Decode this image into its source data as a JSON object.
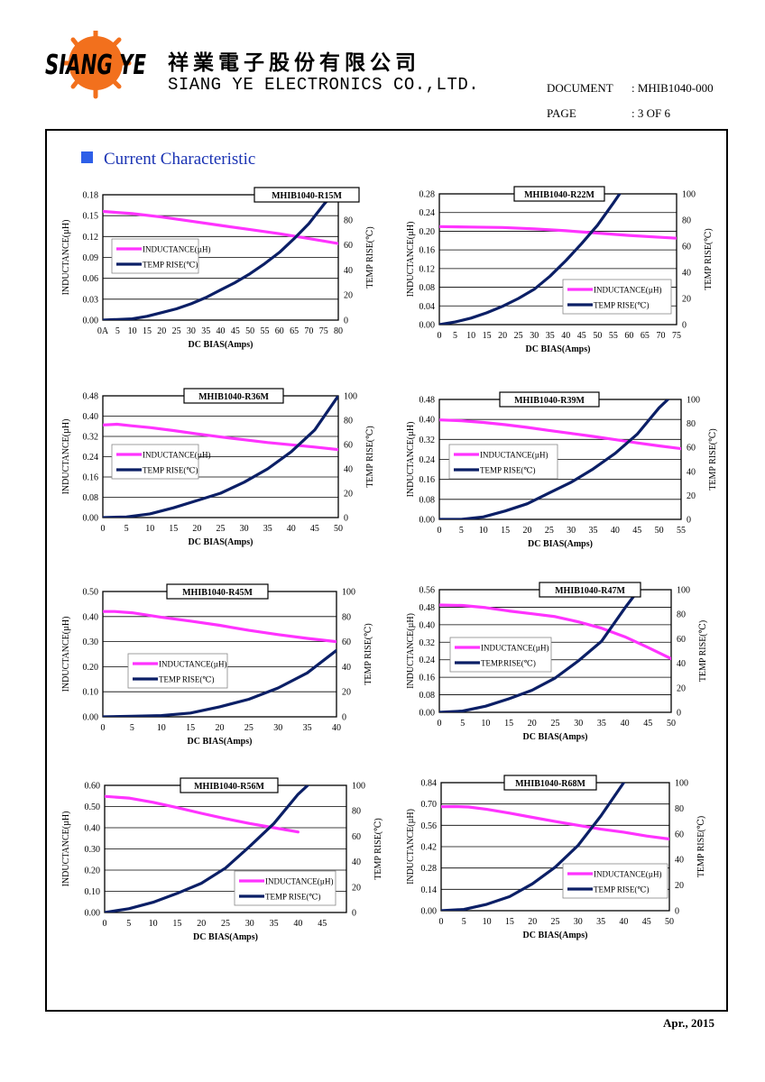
{
  "header": {
    "logo_text": "SIANG YE",
    "company_cn": "祥業電子股份有限公司",
    "company_en": "SIANG YE ELECTRONICS CO.,LTD.",
    "doc_label": "DOCUMENT",
    "doc_value": ": MHIB1040-000",
    "page_label": "PAGE",
    "page_value": ": 3 OF 6"
  },
  "section": {
    "title": "Current Characteristic"
  },
  "footer": {
    "date": "Apr., 2015"
  },
  "colors": {
    "inductance": "#ff33ff",
    "temp": "#0b1f66",
    "title_blue": "#1a33b3"
  },
  "chart_data": [
    {
      "type": "line",
      "title": "MHIB1040-R15M",
      "xlabel": "DC BIAS(Amps)",
      "ylabel": "INDUCTANCE(µH)",
      "y2label": "TEMP RISE(℃)",
      "xlim": [
        0,
        80
      ],
      "ylim": [
        0,
        0.18
      ],
      "y2lim": [
        0,
        100
      ],
      "xticks": [
        "0A",
        "5",
        "10",
        "15",
        "20",
        "25",
        "30",
        "35",
        "40",
        "45",
        "50",
        "55",
        "60",
        "65",
        "70",
        "75",
        "80"
      ],
      "yticks": [
        "0.00",
        "0.03",
        "0.06",
        "0.09",
        "0.12",
        "0.15",
        "0.18"
      ],
      "y2ticks": [
        "0",
        "20",
        "40",
        "60",
        "80",
        "100"
      ],
      "legend": [
        "INDUCTANCE(µH)",
        "TEMP RISE(℃)"
      ],
      "series": [
        {
          "name": "INDUCTANCE(µH)",
          "axis": "left",
          "x": [
            0,
            10,
            20,
            30,
            40,
            50,
            60,
            70,
            80
          ],
          "y": [
            0.156,
            0.153,
            0.148,
            0.142,
            0.136,
            0.13,
            0.124,
            0.117,
            0.11
          ]
        },
        {
          "name": "TEMP RISE(℃)",
          "axis": "right",
          "x": [
            0,
            5,
            10,
            15,
            20,
            25,
            30,
            35,
            40,
            45,
            50,
            55,
            60,
            65,
            70,
            75,
            78
          ],
          "y": [
            0,
            0.5,
            1,
            3,
            6,
            9,
            13,
            18,
            24,
            30,
            37,
            45,
            54,
            65,
            77,
            92,
            100
          ]
        }
      ]
    },
    {
      "type": "line",
      "title": "MHIB1040-R22M",
      "xlabel": "DC BIAS(Amps)",
      "ylabel": "INDUCTANCE(µH)",
      "y2label": "TEMP RISE(℃)",
      "xlim": [
        0,
        75
      ],
      "ylim": [
        0,
        0.28
      ],
      "y2lim": [
        0,
        100
      ],
      "xticks": [
        "0",
        "5",
        "10",
        "15",
        "20",
        "25",
        "30",
        "35",
        "40",
        "45",
        "50",
        "55",
        "60",
        "65",
        "70",
        "75"
      ],
      "yticks": [
        "0.00",
        "0.04",
        "0.08",
        "0.12",
        "0.16",
        "0.20",
        "0.24",
        "0.28"
      ],
      "y2ticks": [
        "0",
        "20",
        "40",
        "60",
        "80",
        "100"
      ],
      "legend": [
        "INDUCTANCE(µH)",
        "TEMP RISE(℃)"
      ],
      "series": [
        {
          "name": "INDUCTANCE(µH)",
          "axis": "left",
          "x": [
            0,
            10,
            20,
            30,
            40,
            50,
            60,
            70,
            75
          ],
          "y": [
            0.21,
            0.209,
            0.208,
            0.205,
            0.201,
            0.196,
            0.191,
            0.187,
            0.185
          ]
        },
        {
          "name": "TEMP RISE(℃)",
          "axis": "right",
          "x": [
            0,
            5,
            10,
            15,
            20,
            25,
            30,
            35,
            40,
            45,
            50,
            55,
            57
          ],
          "y": [
            0,
            2,
            5,
            9,
            14,
            20,
            27,
            37,
            49,
            62,
            76,
            93,
            100
          ]
        }
      ]
    },
    {
      "type": "line",
      "title": "MHIB1040-R36M",
      "xlabel": "DC BIAS(Amps)",
      "ylabel": "INDUCTANCE(µH)",
      "y2label": "TEMP RISE(℃)",
      "xlim": [
        0,
        50
      ],
      "ylim": [
        0,
        0.48
      ],
      "y2lim": [
        0,
        100
      ],
      "xticks": [
        "0",
        "5",
        "10",
        "15",
        "20",
        "25",
        "30",
        "35",
        "40",
        "45",
        "50"
      ],
      "yticks": [
        "0.00",
        "0.08",
        "0.16",
        "0.24",
        "0.32",
        "0.40",
        "0.48"
      ],
      "y2ticks": [
        "0",
        "20",
        "40",
        "60",
        "80",
        "100"
      ],
      "legend": [
        "INDUCTANCE(µH)",
        "TEMP RISE(℃)"
      ],
      "series": [
        {
          "name": "INDUCTANCE(µH)",
          "axis": "left",
          "x": [
            0,
            3,
            6,
            10,
            15,
            20,
            25,
            30,
            35,
            40,
            45,
            50
          ],
          "y": [
            0.365,
            0.368,
            0.362,
            0.355,
            0.343,
            0.33,
            0.318,
            0.307,
            0.296,
            0.287,
            0.278,
            0.268
          ]
        },
        {
          "name": "TEMP RISE(℃)",
          "axis": "right",
          "x": [
            0,
            5,
            10,
            15,
            20,
            25,
            30,
            35,
            40,
            45,
            50
          ],
          "y": [
            0,
            0.5,
            3,
            8,
            14,
            20,
            29,
            40,
            54,
            72,
            100
          ]
        }
      ]
    },
    {
      "type": "line",
      "title": "MHIB1040-R39M",
      "xlabel": "DC BIAS(Amps)",
      "ylabel": "INDUCTANCE(µH)",
      "y2label": "TEMP RISE(℃)",
      "xlim": [
        0,
        55
      ],
      "ylim": [
        0,
        0.48
      ],
      "y2lim": [
        0,
        100
      ],
      "xticks": [
        "0",
        "5",
        "10",
        "15",
        "20",
        "25",
        "30",
        "35",
        "40",
        "45",
        "50",
        "55"
      ],
      "yticks": [
        "0.00",
        "0.08",
        "0.16",
        "0.24",
        "0.32",
        "0.40",
        "0.48"
      ],
      "y2ticks": [
        "0",
        "20",
        "40",
        "60",
        "80",
        "100"
      ],
      "legend": [
        "INDUCTANCE(µH)",
        "TEMP RISE(℃)"
      ],
      "series": [
        {
          "name": "INDUCTANCE(µH)",
          "axis": "left",
          "x": [
            0,
            5,
            10,
            15,
            20,
            25,
            30,
            35,
            40,
            45,
            50,
            55
          ],
          "y": [
            0.398,
            0.395,
            0.388,
            0.379,
            0.368,
            0.356,
            0.344,
            0.332,
            0.319,
            0.306,
            0.294,
            0.283
          ]
        },
        {
          "name": "TEMP RISE(℃)",
          "axis": "right",
          "x": [
            0,
            5,
            10,
            15,
            20,
            25,
            30,
            35,
            40,
            45,
            50,
            52
          ],
          "y": [
            0,
            0,
            2,
            7,
            13,
            22,
            31,
            42,
            55,
            71,
            93,
            100
          ]
        }
      ]
    },
    {
      "type": "line",
      "title": "MHIB1040-R45M",
      "xlabel": "DC BIAS(Amps)",
      "ylabel": "INDUCTANCE(µH)",
      "y2label": "TEMP RISE(℃)",
      "xlim": [
        0,
        40
      ],
      "ylim": [
        0,
        0.5
      ],
      "y2lim": [
        0,
        100
      ],
      "xticks": [
        "0",
        "5",
        "10",
        "15",
        "20",
        "25",
        "30",
        "35",
        "40"
      ],
      "yticks": [
        "0.00",
        "0.10",
        "0.20",
        "0.30",
        "0.40",
        "0.50"
      ],
      "y2ticks": [
        "0",
        "20",
        "40",
        "60",
        "80",
        "100"
      ],
      "legend": [
        "INDUCTANCE(µH)",
        "TEMP RISE(℃)"
      ],
      "series": [
        {
          "name": "INDUCTANCE(µH)",
          "axis": "left",
          "x": [
            0,
            2,
            5,
            10,
            15,
            20,
            25,
            30,
            35,
            40
          ],
          "y": [
            0.42,
            0.42,
            0.415,
            0.397,
            0.382,
            0.365,
            0.345,
            0.328,
            0.313,
            0.3
          ]
        },
        {
          "name": "TEMP RISE(℃)",
          "axis": "right",
          "x": [
            0,
            5,
            10,
            15,
            20,
            25,
            30,
            35,
            40
          ],
          "y": [
            0,
            0.5,
            1,
            3,
            8,
            14,
            23,
            35,
            53
          ]
        }
      ]
    },
    {
      "type": "line",
      "title": "MHIB1040-R47M",
      "xlabel": "DC BIAS(Amps)",
      "ylabel": "INDUCTANCE(µH)",
      "y2label": "TEMP RISE(℃)",
      "xlim": [
        0,
        50
      ],
      "ylim": [
        0,
        0.56
      ],
      "y2lim": [
        0,
        100
      ],
      "xticks": [
        "0",
        "5",
        "10",
        "15",
        "20",
        "25",
        "30",
        "35",
        "40",
        "45",
        "50"
      ],
      "yticks": [
        "0.00",
        "0.08",
        "0.16",
        "0.24",
        "0.32",
        "0.40",
        "0.48",
        "0.56"
      ],
      "y2ticks": [
        "0",
        "20",
        "40",
        "60",
        "80",
        "100"
      ],
      "legend": [
        "INDUCTANCE(µH)",
        "TEMP.RISE(℃)"
      ],
      "series": [
        {
          "name": "INDUCTANCE(µH)",
          "axis": "left",
          "x": [
            0,
            5,
            10,
            15,
            20,
            25,
            30,
            35,
            40,
            45,
            50
          ],
          "y": [
            0.49,
            0.488,
            0.478,
            0.463,
            0.45,
            0.437,
            0.413,
            0.384,
            0.345,
            0.296,
            0.245
          ]
        },
        {
          "name": "TEMP.RISE(℃)",
          "axis": "right",
          "x": [
            0,
            5,
            10,
            15,
            20,
            25,
            30,
            35,
            40,
            43
          ],
          "y": [
            0,
            1,
            5,
            11,
            18,
            28,
            42,
            58,
            85,
            100
          ]
        }
      ]
    },
    {
      "type": "line",
      "title": "MHIB1040-R56M",
      "xlabel": "DC BIAS(Amps)",
      "ylabel": "INDUCTANCE(µH)",
      "y2label": "TEMP RISE(℃)",
      "xlim": [
        0,
        50
      ],
      "ylim": [
        0,
        0.6
      ],
      "y2lim": [
        0,
        100
      ],
      "xticks": [
        "0",
        "5",
        "10",
        "15",
        "20",
        "25",
        "30",
        "35",
        "40",
        "45"
      ],
      "yticks": [
        "0.00",
        "0.10",
        "0.20",
        "0.30",
        "0.40",
        "0.50",
        "0.60"
      ],
      "y2ticks": [
        "0",
        "20",
        "40",
        "60",
        "80",
        "100"
      ],
      "legend": [
        "INDUCTANCE(µH)",
        "TEMP RISE(℃)"
      ],
      "series": [
        {
          "name": "INDUCTANCE(µH)",
          "axis": "left",
          "x": [
            0,
            5,
            10,
            15,
            20,
            25,
            30,
            35,
            40
          ],
          "y": [
            0.548,
            0.54,
            0.52,
            0.495,
            0.468,
            0.443,
            0.42,
            0.4,
            0.38
          ]
        },
        {
          "name": "TEMP RISE(℃)",
          "axis": "right",
          "x": [
            0,
            5,
            10,
            15,
            20,
            25,
            30,
            35,
            40,
            42
          ],
          "y": [
            0,
            3,
            8,
            15,
            23,
            35,
            52,
            70,
            93,
            100
          ]
        }
      ]
    },
    {
      "type": "line",
      "title": "MHIB1040-R68M",
      "xlabel": "DC BIAS(Amps)",
      "ylabel": "INDUCTANCE(µH)",
      "y2label": "TEMP RISE(℃)",
      "xlim": [
        0,
        50
      ],
      "ylim": [
        0,
        0.84
      ],
      "y2lim": [
        0,
        100
      ],
      "xticks": [
        "0",
        "5",
        "10",
        "15",
        "20",
        "25",
        "30",
        "35",
        "40",
        "45",
        "50"
      ],
      "yticks": [
        "0.00",
        "0.14",
        "0.28",
        "0.42",
        "0.56",
        "0.70",
        "0.84"
      ],
      "y2ticks": [
        "0",
        "20",
        "40",
        "60",
        "80",
        "100"
      ],
      "legend": [
        "INDUCTANCE(µH)",
        "TEMP RISE(℃)"
      ],
      "series": [
        {
          "name": "INDUCTANCE(µH)",
          "axis": "left",
          "x": [
            0,
            3,
            6,
            10,
            15,
            20,
            25,
            30,
            35,
            40,
            45,
            50
          ],
          "y": [
            0.682,
            0.683,
            0.68,
            0.665,
            0.64,
            0.612,
            0.585,
            0.56,
            0.535,
            0.515,
            0.49,
            0.47
          ]
        },
        {
          "name": "TEMP RISE(℃)",
          "axis": "right",
          "x": [
            0,
            5,
            10,
            15,
            20,
            25,
            30,
            35,
            40
          ],
          "y": [
            0,
            1,
            5,
            11,
            21,
            34,
            51,
            74,
            100
          ]
        }
      ]
    }
  ]
}
